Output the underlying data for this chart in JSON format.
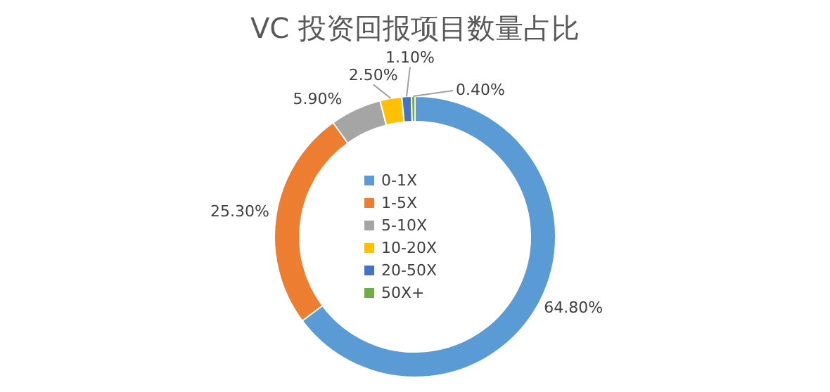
{
  "chart_data": {
    "type": "donut",
    "title": "VC 投资回报项目数量占比",
    "categories": [
      "0-1X",
      "1-5X",
      "5-10X",
      "10-20X",
      "20-50X",
      "50X+"
    ],
    "values": [
      64.8,
      25.3,
      5.9,
      2.5,
      1.1,
      0.4
    ],
    "value_labels": [
      "64.80%",
      "25.30%",
      "5.90%",
      "2.50%",
      "1.10%",
      "0.40%"
    ],
    "colors": [
      "#5b9bd5",
      "#ed7d31",
      "#a5a5a5",
      "#ffc000",
      "#4472c4",
      "#70ad47"
    ],
    "legend": "center"
  }
}
